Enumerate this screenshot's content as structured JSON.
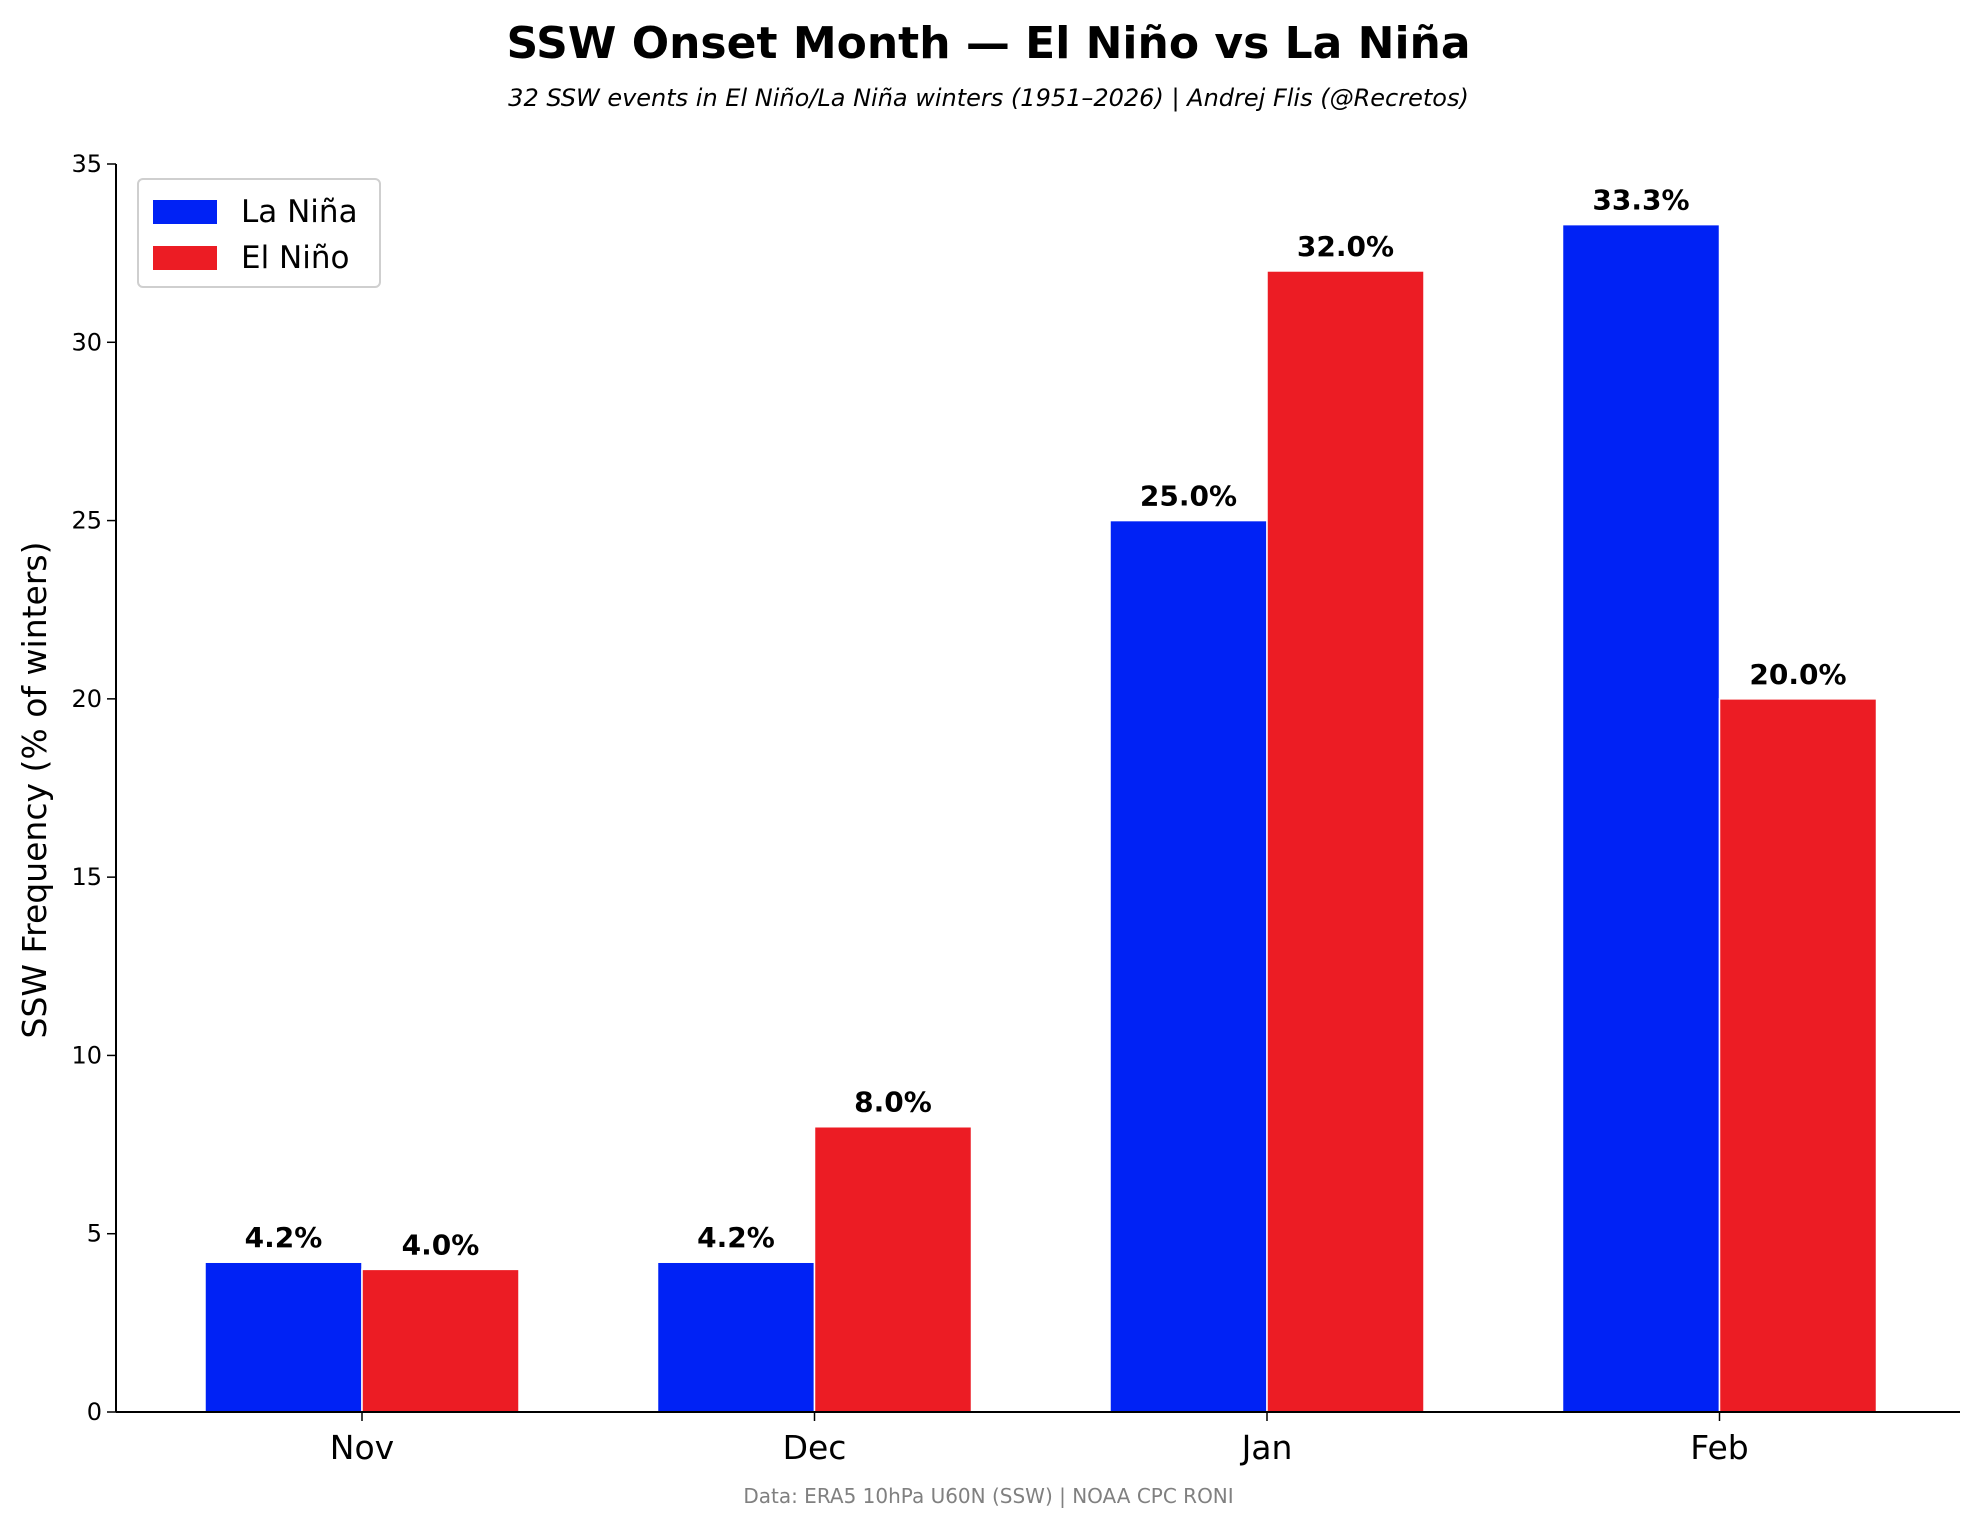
{
  "chart_data": {
    "type": "bar",
    "title": "SSW Onset Month — El Niño vs La Niña",
    "subtitle": "32 SSW events in El Niño/La Niña winters (1951–2026)  |  Andrej Flis (@Recretos)",
    "xlabel": "",
    "ylabel": "SSW Frequency (% of winters)",
    "categories": [
      "Nov",
      "Dec",
      "Jan",
      "Feb"
    ],
    "series": [
      {
        "name": "La Niña",
        "color": "#0022f5",
        "values": [
          4.2,
          4.2,
          25.0,
          33.3
        ],
        "labels": [
          "4.2%",
          "4.2%",
          "25.0%",
          "33.3%"
        ]
      },
      {
        "name": "El Niño",
        "color": "#ec1c24",
        "values": [
          4.0,
          8.0,
          32.0,
          20.0
        ],
        "labels": [
          "4.0%",
          "8.0%",
          "32.0%",
          "20.0%"
        ]
      }
    ],
    "ylim": [
      0,
      35
    ],
    "yticks": [
      0,
      5,
      10,
      15,
      20,
      25,
      30,
      35
    ],
    "grid": false,
    "legend_position": "top-left",
    "footer": "Data: ERA5 10hPa U60N (SSW)  |  NOAA CPC RONI"
  }
}
